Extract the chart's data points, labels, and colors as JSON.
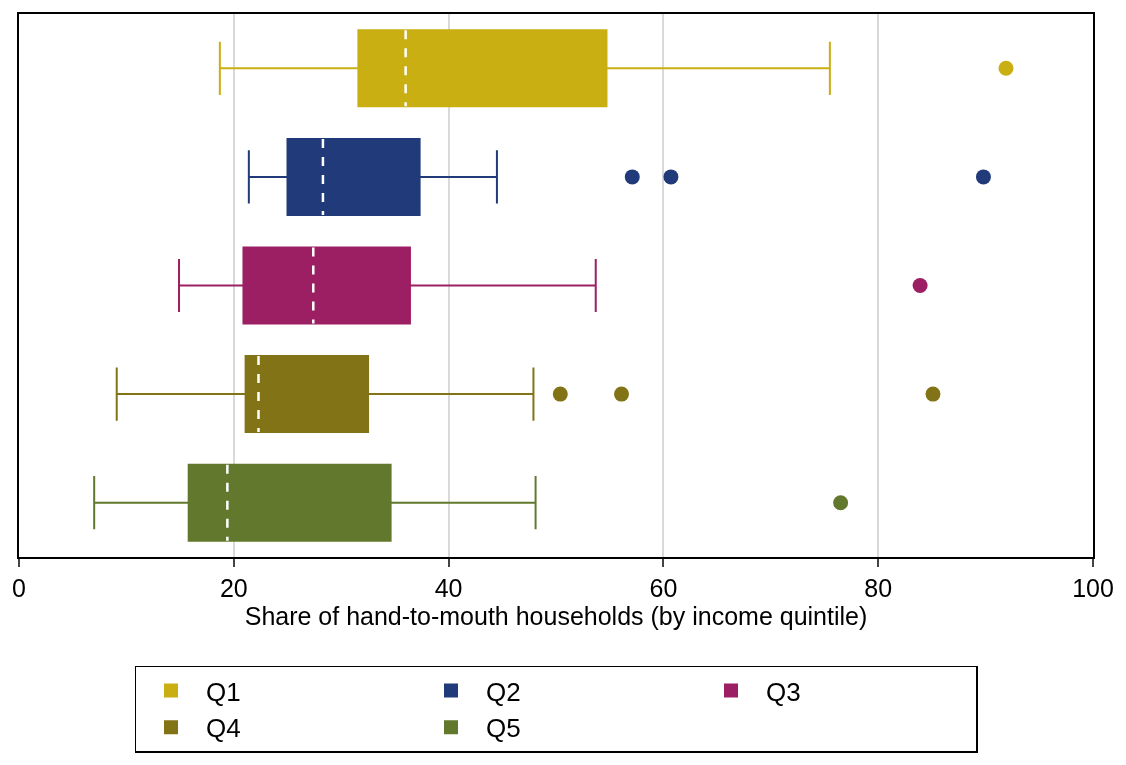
{
  "chart_data": {
    "type": "box",
    "orientation": "horizontal",
    "xlabel": "Share of hand-to-mouth households (by income quintile)",
    "categories": [
      null,
      null,
      null,
      null,
      null
    ],
    "xlim": [
      0,
      100
    ],
    "xticks": [
      0,
      20,
      40,
      60,
      80,
      100
    ],
    "grid": "x",
    "legend": "bottom",
    "series": [
      {
        "name": "Q1",
        "color": "#c9af12",
        "boxes": [
          {
            "low": 18.7,
            "q1": 31.6,
            "median": 36.0,
            "q3": 54.7,
            "high": 75.5,
            "outliers": [
              91.9
            ]
          },
          null,
          null,
          null,
          null
        ]
      },
      {
        "name": "Q2",
        "color": "#213a7a",
        "boxes": [
          null,
          {
            "low": 21.4,
            "q1": 25.0,
            "median": 28.3,
            "q3": 37.3,
            "high": 44.5,
            "outliers": [
              57.1,
              60.7,
              89.8
            ]
          },
          null,
          null,
          null
        ]
      },
      {
        "name": "Q3",
        "color": "#9c1e63",
        "boxes": [
          null,
          null,
          {
            "low": 14.9,
            "q1": 20.9,
            "median": 27.4,
            "q3": 36.4,
            "high": 53.7,
            "outliers": [
              83.9
            ]
          },
          null,
          null
        ]
      },
      {
        "name": "Q4",
        "color": "#837317",
        "boxes": [
          null,
          null,
          null,
          {
            "low": 9.1,
            "q1": 21.1,
            "median": 22.3,
            "q3": 32.5,
            "high": 47.9,
            "outliers": [
              50.4,
              56.1,
              85.1
            ]
          },
          null
        ]
      },
      {
        "name": "Q5",
        "color": "#62792d",
        "boxes": [
          null,
          null,
          null,
          null,
          {
            "low": 7.0,
            "q1": 15.8,
            "median": 19.4,
            "q3": 34.6,
            "high": 48.1,
            "outliers": [
              76.5
            ]
          }
        ]
      }
    ]
  }
}
